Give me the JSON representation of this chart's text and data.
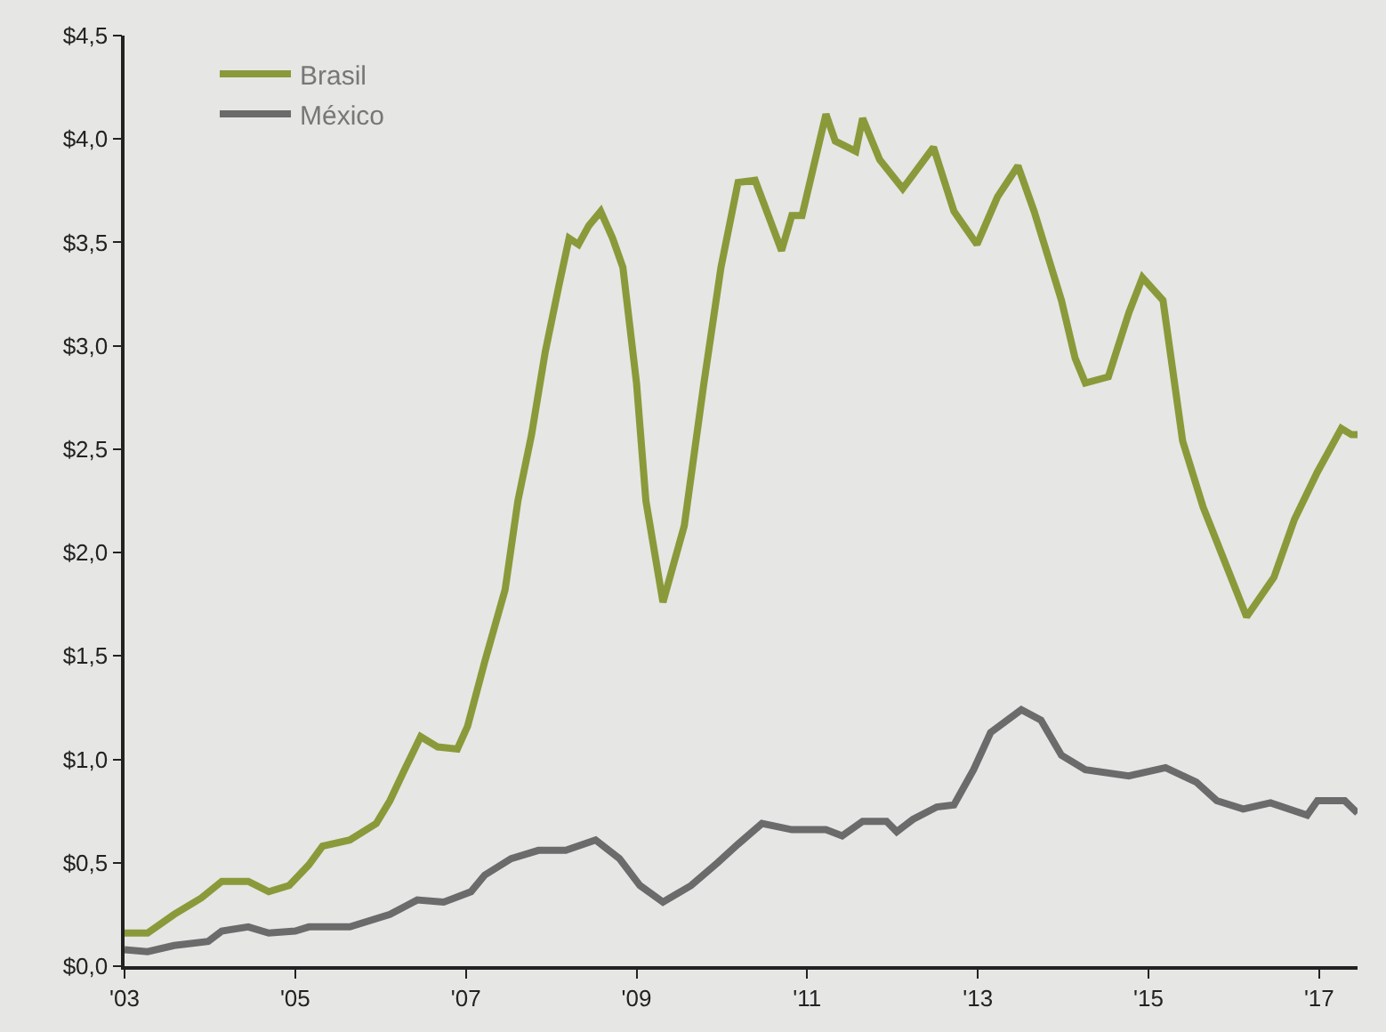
{
  "chart_data": {
    "type": "line",
    "xlim": [
      2003,
      2017.45
    ],
    "xticks": [
      {
        "value": 2003,
        "label": "'03"
      },
      {
        "value": 2005,
        "label": "'05"
      },
      {
        "value": 2007,
        "label": "'07"
      },
      {
        "value": 2009,
        "label": "'09"
      },
      {
        "value": 2011,
        "label": "'11"
      },
      {
        "value": 2013,
        "label": "'13"
      },
      {
        "value": 2015,
        "label": "'15"
      },
      {
        "value": 2017,
        "label": "'17"
      }
    ],
    "ylim": [
      0,
      4.5
    ],
    "yticks": [
      {
        "value": 0,
        "label": "$0,0"
      },
      {
        "value": 0.5,
        "label": "$0,5"
      },
      {
        "value": 1,
        "label": "$1,0"
      },
      {
        "value": 1.5,
        "label": "$1,5"
      },
      {
        "value": 2,
        "label": "$2,0"
      },
      {
        "value": 2.5,
        "label": "$2,5"
      },
      {
        "value": 3,
        "label": "$3,0"
      },
      {
        "value": 3.5,
        "label": "$3,5"
      },
      {
        "value": 4,
        "label": "$4,0"
      },
      {
        "value": 4.5,
        "label": "$4,5"
      }
    ],
    "grid": false,
    "legend": "top left",
    "marker": "none",
    "line_style": "solid",
    "series": [
      {
        "name": "Brasil",
        "color": "#8a9a3a",
        "x": [
          2003.0,
          2003.27,
          2003.58,
          2003.9,
          2004.14,
          2004.45,
          2004.69,
          2004.93,
          2005.16,
          2005.32,
          2005.64,
          2005.95,
          2006.11,
          2006.27,
          2006.47,
          2006.67,
          2006.9,
          2007.02,
          2007.22,
          2007.46,
          2007.61,
          2007.77,
          2007.93,
          2008.09,
          2008.21,
          2008.32,
          2008.44,
          2008.58,
          2008.72,
          2008.84,
          2009.0,
          2009.11,
          2009.31,
          2009.56,
          2009.79,
          2009.99,
          2010.19,
          2010.39,
          2010.7,
          2010.82,
          2010.94,
          2011.22,
          2011.33,
          2011.57,
          2011.65,
          2011.85,
          2012.12,
          2012.48,
          2012.72,
          2012.99,
          2013.23,
          2013.47,
          2013.66,
          2013.98,
          2014.14,
          2014.26,
          2014.53,
          2014.77,
          2014.93,
          2015.17,
          2015.4,
          2015.64,
          2015.88,
          2016.15,
          2016.47,
          2016.71,
          2016.98,
          2017.26,
          2017.38,
          2017.45
        ],
        "values": [
          0.16,
          0.16,
          0.25,
          0.33,
          0.41,
          0.41,
          0.36,
          0.39,
          0.49,
          0.58,
          0.61,
          0.69,
          0.8,
          0.94,
          1.11,
          1.06,
          1.05,
          1.16,
          1.47,
          1.82,
          2.25,
          2.57,
          2.97,
          3.29,
          3.52,
          3.49,
          3.58,
          3.65,
          3.52,
          3.38,
          2.82,
          2.25,
          1.76,
          2.13,
          2.82,
          3.38,
          3.79,
          3.8,
          3.46,
          3.63,
          3.63,
          4.12,
          3.99,
          3.94,
          4.1,
          3.9,
          3.76,
          3.96,
          3.65,
          3.49,
          3.72,
          3.87,
          3.65,
          3.22,
          2.94,
          2.82,
          2.85,
          3.16,
          3.33,
          3.22,
          2.54,
          2.22,
          1.97,
          1.69,
          1.88,
          2.16,
          2.39,
          2.6,
          2.57,
          2.57
        ]
      },
      {
        "name": "México",
        "color": "#6b6b6b",
        "x": [
          2003.0,
          2003.27,
          2003.58,
          2003.98,
          2004.14,
          2004.45,
          2004.69,
          2005.0,
          2005.16,
          2005.64,
          2006.11,
          2006.43,
          2006.74,
          2007.06,
          2007.22,
          2007.53,
          2007.85,
          2008.17,
          2008.52,
          2008.8,
          2009.04,
          2009.31,
          2009.64,
          2009.95,
          2010.19,
          2010.47,
          2010.82,
          2011.22,
          2011.41,
          2011.65,
          2011.93,
          2012.05,
          2012.24,
          2012.52,
          2012.72,
          2012.95,
          2013.15,
          2013.51,
          2013.74,
          2013.98,
          2014.26,
          2014.77,
          2015.2,
          2015.56,
          2015.8,
          2016.11,
          2016.43,
          2016.86,
          2016.98,
          2017.3,
          2017.45
        ],
        "values": [
          0.08,
          0.07,
          0.1,
          0.12,
          0.17,
          0.19,
          0.16,
          0.17,
          0.19,
          0.19,
          0.25,
          0.32,
          0.31,
          0.36,
          0.44,
          0.52,
          0.56,
          0.56,
          0.61,
          0.52,
          0.39,
          0.31,
          0.39,
          0.5,
          0.59,
          0.69,
          0.66,
          0.66,
          0.63,
          0.7,
          0.7,
          0.65,
          0.71,
          0.77,
          0.78,
          0.95,
          1.13,
          1.24,
          1.19,
          1.02,
          0.95,
          0.92,
          0.96,
          0.89,
          0.8,
          0.76,
          0.79,
          0.73,
          0.8,
          0.8,
          0.74
        ]
      }
    ]
  }
}
